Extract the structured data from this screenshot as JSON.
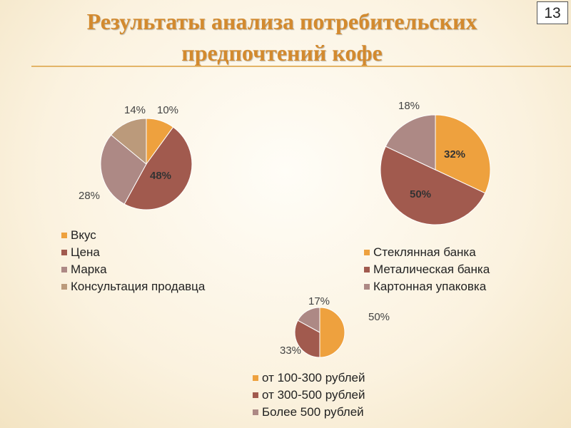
{
  "slide": {
    "title_line1": "Результаты анализа  потребительских",
    "title_line2": "предпочтений кофе",
    "number": "13",
    "accent": "#d38a2e"
  },
  "chart_data": [
    {
      "type": "pie",
      "categories": [
        "Вкус",
        "Цена",
        "Марка",
        "Консультация продавца"
      ],
      "values": [
        10,
        48,
        28,
        14
      ],
      "labels": [
        "10%",
        "48%",
        "28%",
        "14%"
      ],
      "colors": [
        "#eea13e",
        "#a15a4e",
        "#ad8985",
        "#bb9a7b"
      ],
      "legend": "bottom"
    },
    {
      "type": "pie",
      "categories": [
        "Стеклянная банка",
        "Металическая банка",
        "Картонная упаковка"
      ],
      "values": [
        32,
        50,
        18
      ],
      "labels": [
        "32%",
        "50%",
        "18%"
      ],
      "colors": [
        "#eea13e",
        "#a15a4e",
        "#ad8985"
      ],
      "legend": "bottom"
    },
    {
      "type": "pie",
      "categories": [
        "от 100-300 рублей",
        "от 300-500 рублей",
        "Более 500 рублей"
      ],
      "values": [
        50,
        33,
        17
      ],
      "labels": [
        "50%",
        "33%",
        "17%"
      ],
      "colors": [
        "#eea13e",
        "#a15a4e",
        "#ad8985"
      ],
      "legend": "bottom"
    }
  ]
}
